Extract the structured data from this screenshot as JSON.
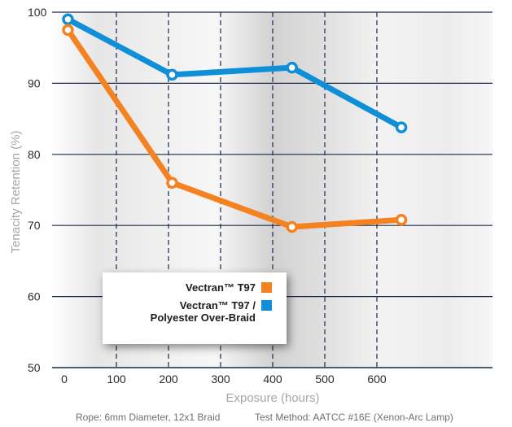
{
  "chart_data": {
    "type": "line",
    "xlabel": "Exposure (hours)",
    "ylabel": "Tenacity Retention (%)",
    "xlim": [
      0,
      660
    ],
    "ylim": [
      50,
      100
    ],
    "xticks": [
      "0",
      "100",
      "200",
      "300",
      "400",
      "500",
      "600"
    ],
    "yticks": [
      "50",
      "60",
      "70",
      "80",
      "90",
      "100"
    ],
    "grid": "horizontal solid, vertical dashed",
    "legend_position": "bottom-left",
    "series": [
      {
        "name": "Vectran™ T97",
        "color": "#f58220",
        "x": [
          7,
          207,
          437,
          647
        ],
        "y": [
          97.5,
          76,
          69.8,
          70.8
        ]
      },
      {
        "name": "Vectran™ T97 /\nPolyester Over-Braid",
        "color": "#0f8fd7",
        "x": [
          7,
          207,
          437,
          647
        ],
        "y": [
          99,
          91.2,
          92.2,
          83.8
        ]
      }
    ]
  },
  "footnotes": {
    "rope": "Rope: 6mm Diameter, 12x1 Braid",
    "method": "Test Method: AATCC #16E (Xenon-Arc Lamp)"
  }
}
